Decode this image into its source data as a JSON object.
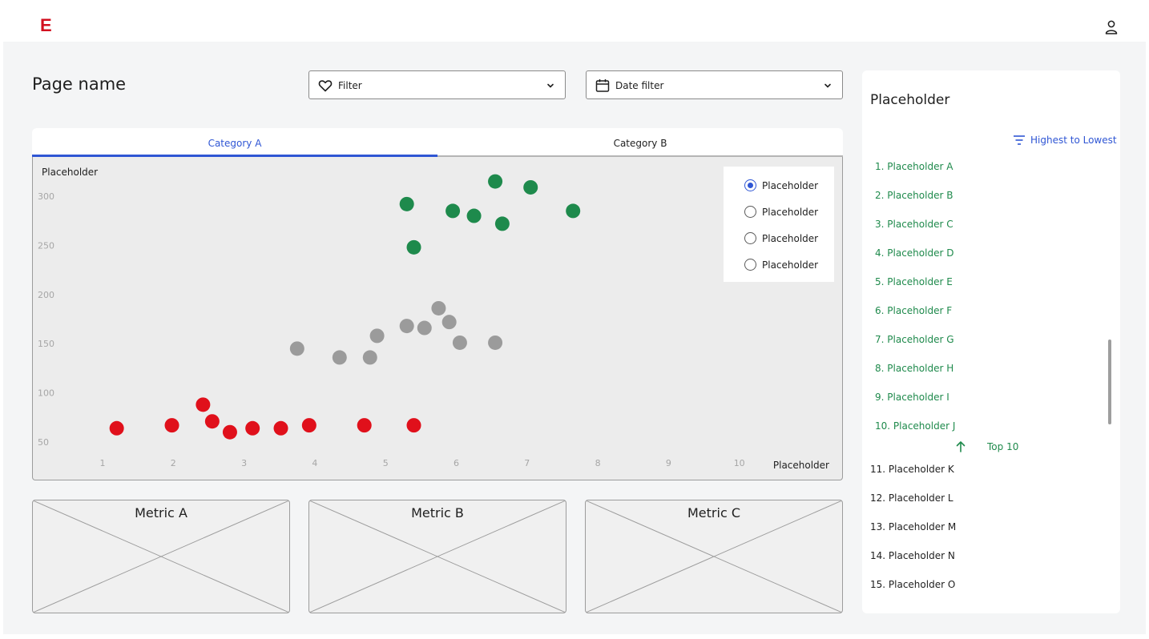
{
  "app": {
    "logo": "E",
    "logo_color": "#d20f1f"
  },
  "page": {
    "title": "Page name"
  },
  "filters": {
    "filter_label": "Filter",
    "date_label": "Date filter"
  },
  "tabs": [
    {
      "label": "Category A",
      "active": true
    },
    {
      "label": "Category B",
      "active": false
    }
  ],
  "legend": {
    "items": [
      {
        "label": "Placeholder",
        "selected": true
      },
      {
        "label": "Placeholder",
        "selected": false
      },
      {
        "label": "Placeholder",
        "selected": false
      },
      {
        "label": "Placeholder",
        "selected": false
      }
    ]
  },
  "chart_data": {
    "type": "scatter",
    "xlabel": "Placeholder",
    "ylabel": "Placeholder",
    "x_ticks": [
      1,
      2,
      3,
      4,
      5,
      6,
      7,
      8,
      9,
      10
    ],
    "y_ticks": [
      50,
      100,
      150,
      200,
      250,
      300
    ],
    "xlim": [
      0.5,
      10.5
    ],
    "ylim": [
      45,
      320
    ],
    "grid": false,
    "legend_position": "top-right",
    "series": [
      {
        "color": "#1e8a4c",
        "points": [
          [
            5.3,
            292
          ],
          [
            5.4,
            248
          ],
          [
            5.95,
            285
          ],
          [
            6.25,
            280
          ],
          [
            6.55,
            315
          ],
          [
            6.65,
            272
          ],
          [
            7.05,
            309
          ],
          [
            7.65,
            285
          ]
        ]
      },
      {
        "color": "#9b9b9b",
        "points": [
          [
            3.75,
            145
          ],
          [
            4.35,
            136
          ],
          [
            4.78,
            136
          ],
          [
            4.88,
            158
          ],
          [
            5.3,
            168
          ],
          [
            5.55,
            166
          ],
          [
            5.75,
            186
          ],
          [
            5.9,
            172
          ],
          [
            6.05,
            151
          ],
          [
            6.55,
            151
          ]
        ]
      },
      {
        "color": "#e0101b",
        "points": [
          [
            1.2,
            64
          ],
          [
            1.98,
            67
          ],
          [
            2.42,
            88
          ],
          [
            2.55,
            71
          ],
          [
            2.8,
            60
          ],
          [
            3.12,
            64
          ],
          [
            3.52,
            64
          ],
          [
            3.92,
            67
          ],
          [
            4.7,
            67
          ],
          [
            5.4,
            67
          ]
        ]
      }
    ]
  },
  "metrics": [
    {
      "title": "Metric A"
    },
    {
      "title": "Metric B"
    },
    {
      "title": "Metric C"
    }
  ],
  "side_panel": {
    "title": "Placeholder",
    "sort_label": "Highest to Lowest",
    "top_label": "Top 10",
    "top_items": [
      "1. Placeholder A",
      "2. Placeholder B",
      "3. Placeholder C",
      "4. Placeholder D",
      "5. Placeholder E",
      "6. Placeholder F",
      "7. Placeholder G",
      "8. Placeholder H",
      "9. Placeholder I",
      "10. Placeholder J"
    ],
    "other_items": [
      "11. Placeholder K",
      "12. Placeholder L",
      "13. Placeholder M",
      "14. Placeholder N",
      "15. Placeholder O"
    ]
  },
  "icons": {
    "user": "user-icon",
    "filter": "heart-icon",
    "date": "calendar-icon",
    "chevron": "chevron-down-icon",
    "sort": "sort-lines-icon",
    "up": "arrow-up-icon"
  },
  "colors": {
    "accent": "#2f56d4",
    "green": "#1f8a4c"
  }
}
